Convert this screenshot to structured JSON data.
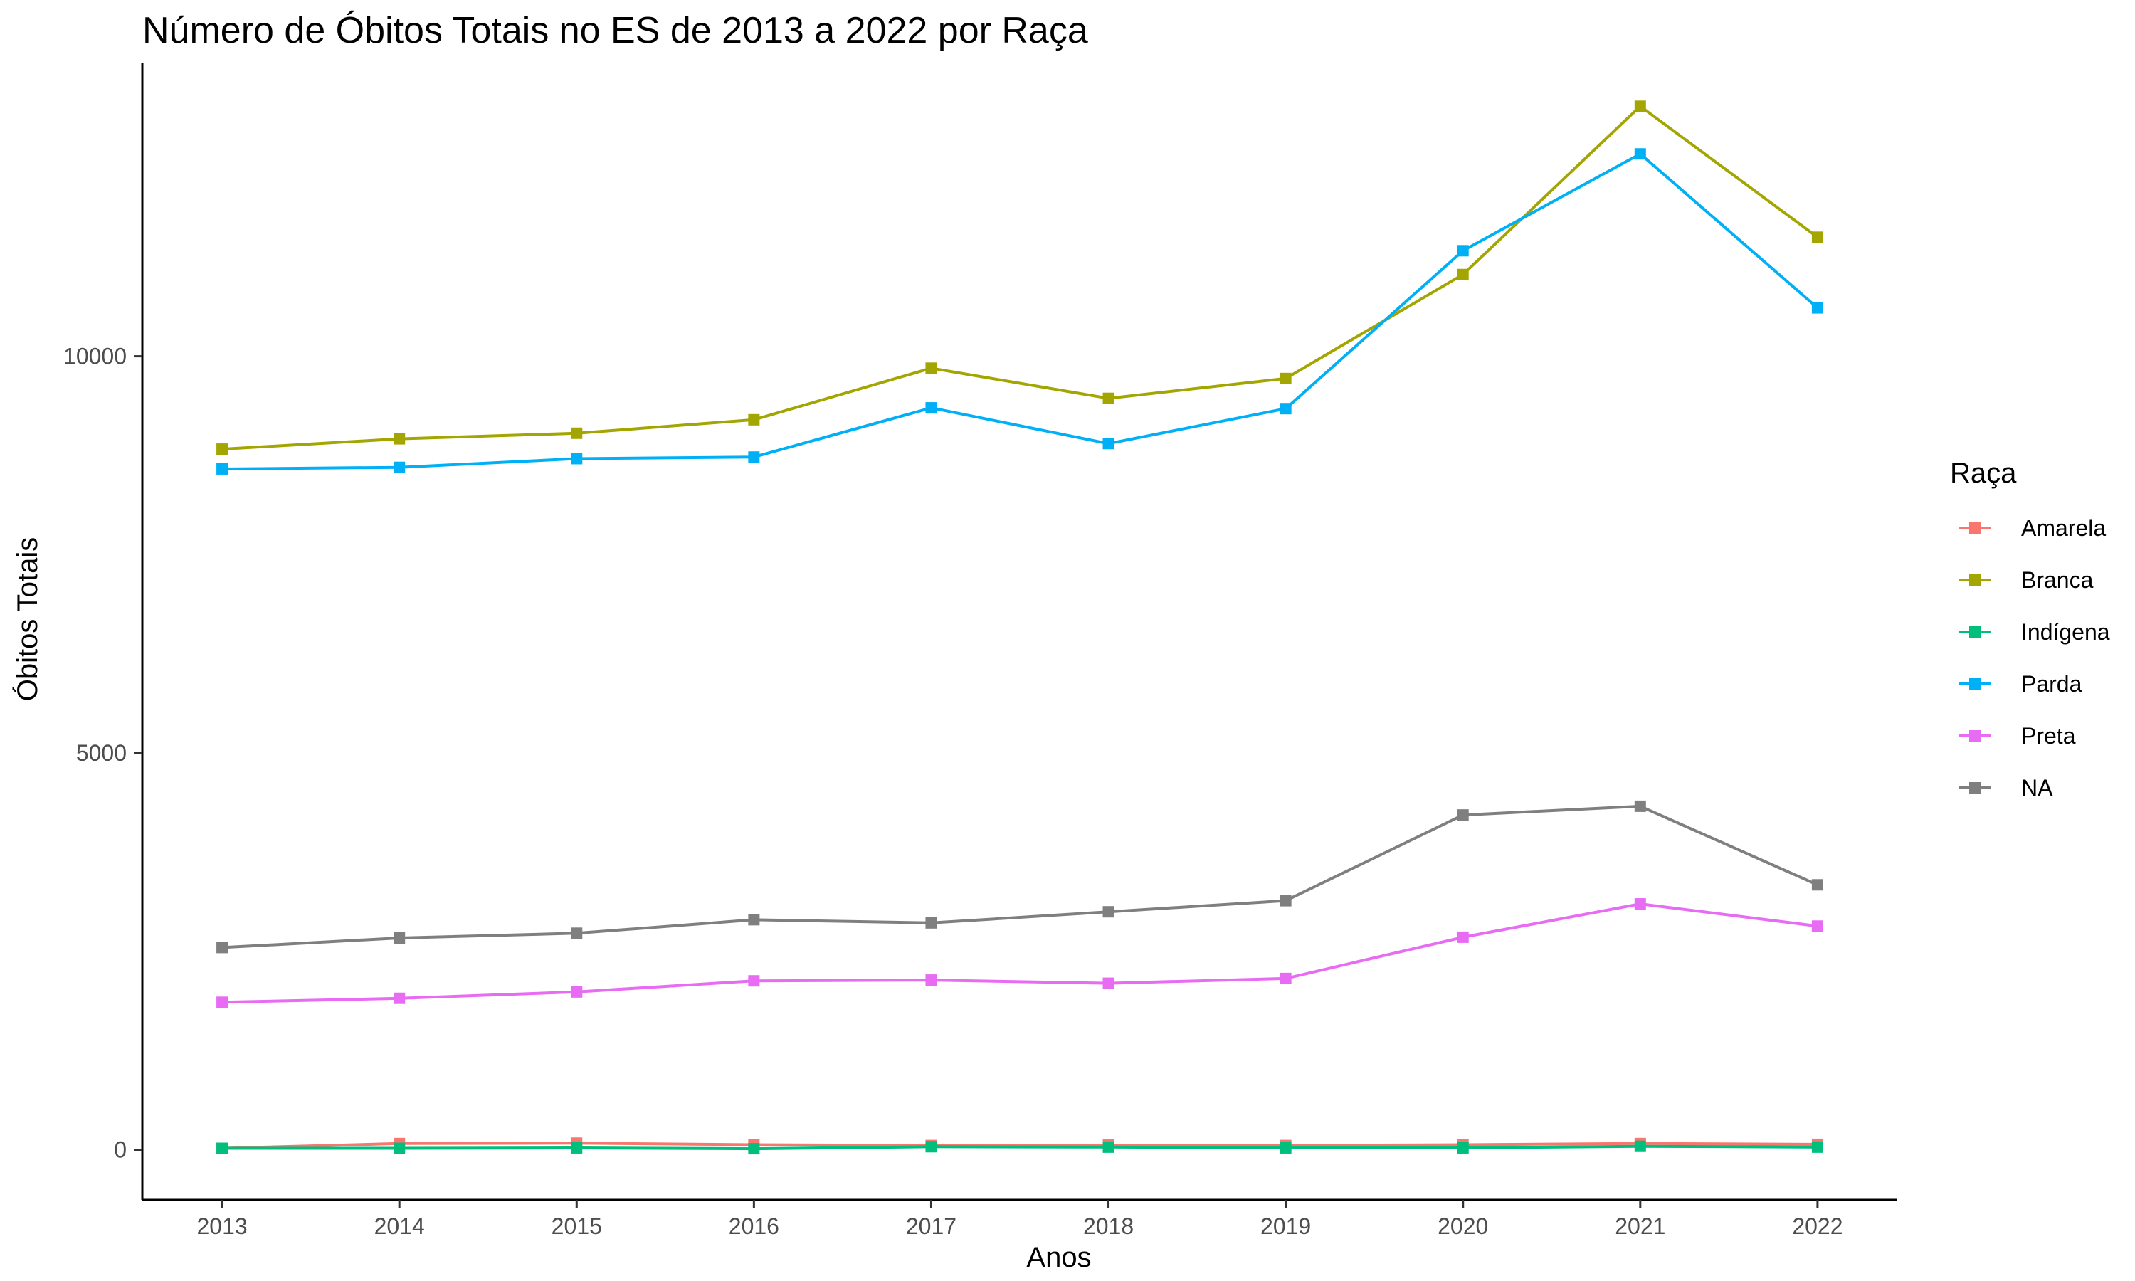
{
  "chart_data": {
    "type": "line",
    "title": "Número de Óbitos Totais no ES de 2013 a 2022 por Raça",
    "xlabel": "Anos",
    "ylabel": "Óbitos Totais",
    "x": [
      "2013",
      "2014",
      "2015",
      "2016",
      "2017",
      "2018",
      "2019",
      "2020",
      "2021",
      "2022"
    ],
    "yticks": [
      {
        "value": 0,
        "label": "0"
      },
      {
        "value": 5000,
        "label": "5000"
      },
      {
        "value": 10000,
        "label": "10000"
      }
    ],
    "ylim": [
      -630,
      13700
    ],
    "grid": false,
    "legend": {
      "title": "Raça",
      "position": "right"
    },
    "series": [
      {
        "name": "Amarela",
        "color": "#F8766D",
        "values": [
          20,
          80,
          85,
          65,
          55,
          60,
          55,
          65,
          80,
          70
        ]
      },
      {
        "name": "Branca",
        "color": "#A3A500",
        "values": [
          8830,
          8960,
          9030,
          9200,
          9850,
          9470,
          9720,
          11030,
          13150,
          11500
        ]
      },
      {
        "name": "Indígena",
        "color": "#00BF7D",
        "values": [
          20,
          20,
          25,
          15,
          40,
          35,
          25,
          25,
          45,
          35
        ]
      },
      {
        "name": "Parda",
        "color": "#00B0F6",
        "values": [
          8580,
          8600,
          8710,
          8730,
          9350,
          8900,
          9340,
          11330,
          12550,
          10610
        ]
      },
      {
        "name": "Preta",
        "color": "#E76BF3",
        "values": [
          1860,
          1910,
          1990,
          2130,
          2140,
          2100,
          2160,
          2680,
          3100,
          2820
        ]
      },
      {
        "name": "NA",
        "color": "#7F7F7F",
        "values": [
          2550,
          2670,
          2730,
          2900,
          2860,
          3000,
          3140,
          4220,
          4330,
          3340
        ]
      }
    ]
  }
}
